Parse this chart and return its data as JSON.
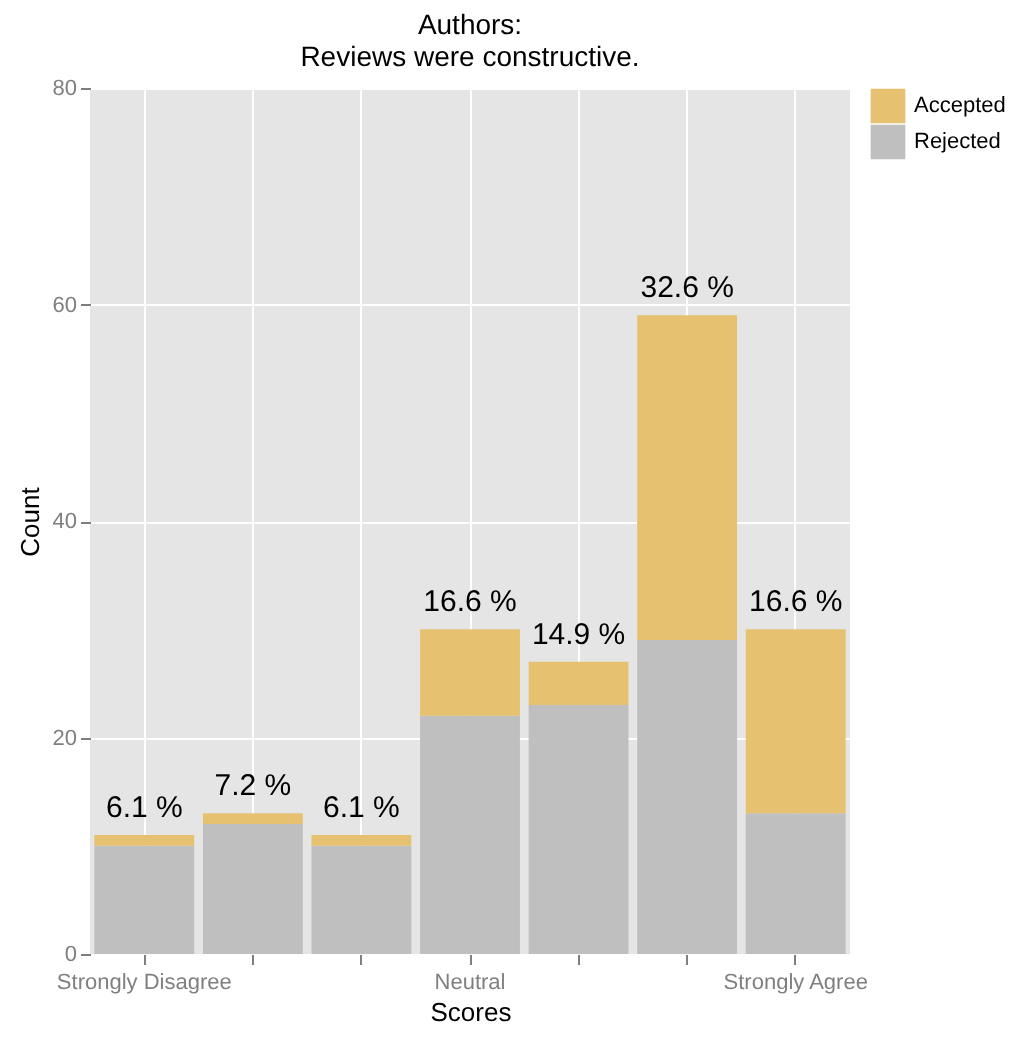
{
  "chart_data": {
    "type": "bar",
    "title": "Authors:\nReviews were constructive.",
    "xlabel": "Scores",
    "ylabel": "Count",
    "categories": [
      "Strongly Disagree",
      null,
      null,
      "Neutral",
      null,
      null,
      "Strongly Agree"
    ],
    "stacked": true,
    "series": [
      {
        "name": "Rejected",
        "color": "#bfbfbf",
        "values": [
          10,
          12,
          10,
          22,
          23,
          29,
          13
        ]
      },
      {
        "name": "Accepted",
        "color": "#e6c270",
        "values": [
          1,
          1,
          1,
          8,
          4,
          30,
          17
        ]
      }
    ],
    "annotations": [
      {
        "text": "6.1 %",
        "x": "Strongly Disagree",
        "y": 11
      },
      {
        "text": "7.2 %",
        "y": 13
      },
      {
        "text": "6.1 %",
        "y": 11
      },
      {
        "text": "16.6 %",
        "x": "Neutral",
        "y": 30
      },
      {
        "text": "14.9 %",
        "y": 27
      },
      {
        "text": "32.6 %",
        "y": 59
      },
      {
        "text": "16.6 %",
        "x": "Strongly Agree",
        "y": 30
      }
    ],
    "ylim": [
      0,
      80
    ],
    "yticks": [
      0,
      20,
      40,
      60,
      80
    ],
    "grid": true,
    "legend": "right"
  }
}
